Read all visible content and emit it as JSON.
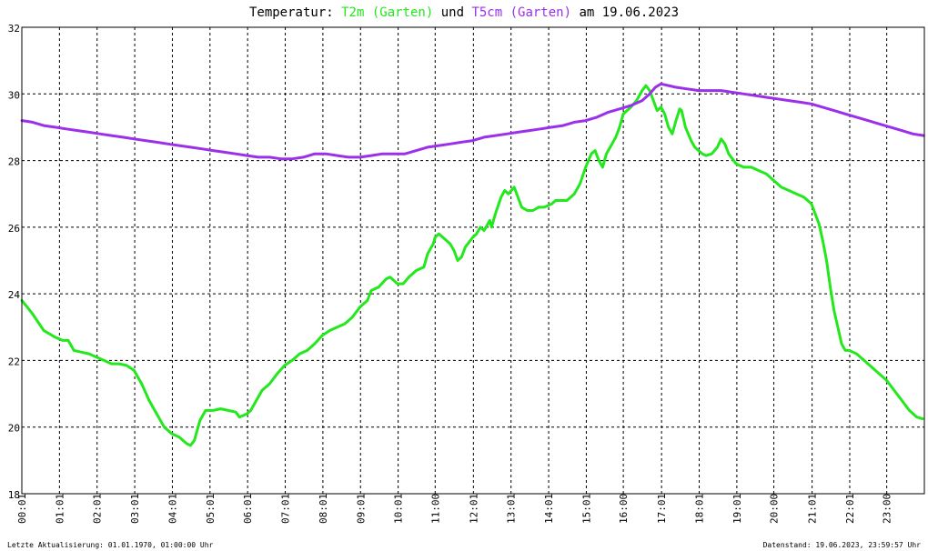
{
  "title": {
    "prefix": "Temperatur: ",
    "series1": "T2m (Garten)",
    "middle": " und ",
    "series2": "T5cm (Garten)",
    "suffix": " am 19.06.2023"
  },
  "footer": {
    "left": "Letzte Aktualisierung: 01.01.1970, 01:00:00 Uhr",
    "right": "Datenstand: 19.06.2023, 23:59:57 Uhr"
  },
  "colors": {
    "t2m": "#22e81c",
    "t5cm": "#9b30ea",
    "grid": "#000000",
    "background": "#ffffff"
  },
  "chart_data": {
    "type": "line",
    "title": "Temperatur: T2m (Garten) und T5cm (Garten) am 19.06.2023",
    "xlabel": "",
    "ylabel": "",
    "xlim": [
      0.0167,
      24
    ],
    "ylim": [
      18,
      32
    ],
    "y_ticks": [
      18,
      20,
      22,
      24,
      26,
      28,
      30,
      32
    ],
    "x_ticks": [
      {
        "x": 0.0167,
        "label": "00:01"
      },
      {
        "x": 1.0167,
        "label": "01:01"
      },
      {
        "x": 2.0167,
        "label": "02:01"
      },
      {
        "x": 3.0167,
        "label": "03:01"
      },
      {
        "x": 4.0167,
        "label": "04:01"
      },
      {
        "x": 5.0167,
        "label": "05:01"
      },
      {
        "x": 6.0167,
        "label": "06:01"
      },
      {
        "x": 7.0167,
        "label": "07:01"
      },
      {
        "x": 8.0167,
        "label": "08:01"
      },
      {
        "x": 9.0167,
        "label": "09:01"
      },
      {
        "x": 10.0167,
        "label": "10:01"
      },
      {
        "x": 11.0,
        "label": "11:00"
      },
      {
        "x": 12.0167,
        "label": "12:01"
      },
      {
        "x": 13.0167,
        "label": "13:01"
      },
      {
        "x": 14.0167,
        "label": "14:01"
      },
      {
        "x": 15.0167,
        "label": "15:01"
      },
      {
        "x": 16.0,
        "label": "16:00"
      },
      {
        "x": 17.0167,
        "label": "17:01"
      },
      {
        "x": 18.0167,
        "label": "18:01"
      },
      {
        "x": 19.0167,
        "label": "19:01"
      },
      {
        "x": 20.0,
        "label": "20:00"
      },
      {
        "x": 21.0167,
        "label": "21:01"
      },
      {
        "x": 22.0167,
        "label": "22:01"
      },
      {
        "x": 23.0,
        "label": "23:00"
      }
    ],
    "grid": true,
    "series": [
      {
        "name": "T2m (Garten)",
        "color": "#22e81c",
        "points": [
          [
            0.02,
            23.8
          ],
          [
            0.3,
            23.4
          ],
          [
            0.6,
            22.9
          ],
          [
            0.9,
            22.7
          ],
          [
            1.1,
            22.6
          ],
          [
            1.25,
            22.6
          ],
          [
            1.4,
            22.3
          ],
          [
            1.6,
            22.25
          ],
          [
            1.8,
            22.2
          ],
          [
            2.0,
            22.1
          ],
          [
            2.2,
            22.0
          ],
          [
            2.4,
            21.9
          ],
          [
            2.6,
            21.9
          ],
          [
            2.8,
            21.85
          ],
          [
            3.0,
            21.7
          ],
          [
            3.2,
            21.3
          ],
          [
            3.4,
            20.8
          ],
          [
            3.6,
            20.4
          ],
          [
            3.8,
            20.0
          ],
          [
            4.0,
            19.8
          ],
          [
            4.2,
            19.7
          ],
          [
            4.4,
            19.5
          ],
          [
            4.5,
            19.45
          ],
          [
            4.6,
            19.6
          ],
          [
            4.75,
            20.2
          ],
          [
            4.9,
            20.5
          ],
          [
            5.1,
            20.5
          ],
          [
            5.3,
            20.55
          ],
          [
            5.5,
            20.5
          ],
          [
            5.7,
            20.45
          ],
          [
            5.8,
            20.3
          ],
          [
            6.0,
            20.4
          ],
          [
            6.1,
            20.5
          ],
          [
            6.25,
            20.8
          ],
          [
            6.4,
            21.1
          ],
          [
            6.6,
            21.3
          ],
          [
            6.8,
            21.6
          ],
          [
            7.0,
            21.85
          ],
          [
            7.2,
            22.0
          ],
          [
            7.4,
            22.2
          ],
          [
            7.6,
            22.3
          ],
          [
            7.8,
            22.5
          ],
          [
            8.0,
            22.75
          ],
          [
            8.2,
            22.9
          ],
          [
            8.4,
            23.0
          ],
          [
            8.6,
            23.1
          ],
          [
            8.8,
            23.3
          ],
          [
            9.0,
            23.6
          ],
          [
            9.2,
            23.8
          ],
          [
            9.3,
            24.1
          ],
          [
            9.5,
            24.2
          ],
          [
            9.7,
            24.45
          ],
          [
            9.8,
            24.5
          ],
          [
            10.0,
            24.3
          ],
          [
            10.15,
            24.3
          ],
          [
            10.3,
            24.5
          ],
          [
            10.5,
            24.7
          ],
          [
            10.7,
            24.8
          ],
          [
            10.8,
            25.2
          ],
          [
            10.95,
            25.5
          ],
          [
            11.0,
            25.7
          ],
          [
            11.1,
            25.8
          ],
          [
            11.3,
            25.6
          ],
          [
            11.4,
            25.5
          ],
          [
            11.5,
            25.3
          ],
          [
            11.6,
            25.0
          ],
          [
            11.7,
            25.1
          ],
          [
            11.8,
            25.4
          ],
          [
            12.0,
            25.7
          ],
          [
            12.1,
            25.8
          ],
          [
            12.2,
            26.0
          ],
          [
            12.3,
            25.9
          ],
          [
            12.45,
            26.2
          ],
          [
            12.5,
            26.0
          ],
          [
            12.6,
            26.4
          ],
          [
            12.75,
            26.9
          ],
          [
            12.85,
            27.1
          ],
          [
            12.95,
            27.0
          ],
          [
            13.1,
            27.2
          ],
          [
            13.2,
            26.9
          ],
          [
            13.3,
            26.6
          ],
          [
            13.45,
            26.5
          ],
          [
            13.6,
            26.5
          ],
          [
            13.75,
            26.6
          ],
          [
            13.9,
            26.6
          ],
          [
            14.1,
            26.7
          ],
          [
            14.2,
            26.8
          ],
          [
            14.35,
            26.8
          ],
          [
            14.5,
            26.8
          ],
          [
            14.7,
            27.0
          ],
          [
            14.85,
            27.3
          ],
          [
            15.0,
            27.8
          ],
          [
            15.15,
            28.2
          ],
          [
            15.25,
            28.3
          ],
          [
            15.35,
            28.0
          ],
          [
            15.45,
            27.8
          ],
          [
            15.55,
            28.2
          ],
          [
            15.7,
            28.5
          ],
          [
            15.8,
            28.7
          ],
          [
            15.9,
            29.0
          ],
          [
            16.0,
            29.4
          ],
          [
            16.1,
            29.5
          ],
          [
            16.2,
            29.6
          ],
          [
            16.35,
            29.8
          ],
          [
            16.5,
            30.1
          ],
          [
            16.6,
            30.25
          ],
          [
            16.7,
            30.1
          ],
          [
            16.8,
            29.8
          ],
          [
            16.9,
            29.5
          ],
          [
            17.0,
            29.6
          ],
          [
            17.1,
            29.4
          ],
          [
            17.2,
            29.0
          ],
          [
            17.3,
            28.8
          ],
          [
            17.4,
            29.2
          ],
          [
            17.5,
            29.55
          ],
          [
            17.55,
            29.5
          ],
          [
            17.65,
            29.0
          ],
          [
            17.8,
            28.6
          ],
          [
            17.9,
            28.4
          ],
          [
            18.0,
            28.3
          ],
          [
            18.1,
            28.2
          ],
          [
            18.2,
            28.15
          ],
          [
            18.35,
            28.2
          ],
          [
            18.5,
            28.4
          ],
          [
            18.6,
            28.65
          ],
          [
            18.7,
            28.5
          ],
          [
            18.8,
            28.2
          ],
          [
            19.0,
            27.9
          ],
          [
            19.2,
            27.8
          ],
          [
            19.4,
            27.8
          ],
          [
            19.6,
            27.7
          ],
          [
            19.8,
            27.6
          ],
          [
            20.0,
            27.4
          ],
          [
            20.2,
            27.2
          ],
          [
            20.4,
            27.1
          ],
          [
            20.6,
            27.0
          ],
          [
            20.8,
            26.9
          ],
          [
            21.0,
            26.7
          ],
          [
            21.1,
            26.4
          ],
          [
            21.2,
            26.1
          ],
          [
            21.3,
            25.6
          ],
          [
            21.4,
            25.0
          ],
          [
            21.5,
            24.2
          ],
          [
            21.6,
            23.5
          ],
          [
            21.7,
            23.0
          ],
          [
            21.8,
            22.5
          ],
          [
            21.9,
            22.3
          ],
          [
            22.0,
            22.3
          ],
          [
            22.2,
            22.2
          ],
          [
            22.4,
            22.0
          ],
          [
            22.6,
            21.8
          ],
          [
            22.8,
            21.6
          ],
          [
            23.0,
            21.4
          ],
          [
            23.2,
            21.1
          ],
          [
            23.4,
            20.8
          ],
          [
            23.6,
            20.5
          ],
          [
            23.8,
            20.3
          ],
          [
            23.95,
            20.25
          ]
        ]
      },
      {
        "name": "T5cm (Garten)",
        "color": "#9b30ea",
        "points": [
          [
            0.02,
            29.2
          ],
          [
            0.3,
            29.15
          ],
          [
            0.6,
            29.05
          ],
          [
            0.9,
            29.0
          ],
          [
            1.2,
            28.95
          ],
          [
            1.5,
            28.9
          ],
          [
            1.8,
            28.85
          ],
          [
            2.1,
            28.8
          ],
          [
            2.4,
            28.75
          ],
          [
            2.7,
            28.7
          ],
          [
            3.0,
            28.65
          ],
          [
            3.3,
            28.6
          ],
          [
            3.6,
            28.55
          ],
          [
            3.9,
            28.5
          ],
          [
            4.2,
            28.45
          ],
          [
            4.5,
            28.4
          ],
          [
            4.8,
            28.35
          ],
          [
            5.1,
            28.3
          ],
          [
            5.4,
            28.25
          ],
          [
            5.7,
            28.2
          ],
          [
            6.0,
            28.15
          ],
          [
            6.3,
            28.1
          ],
          [
            6.6,
            28.1
          ],
          [
            6.9,
            28.05
          ],
          [
            7.2,
            28.05
          ],
          [
            7.5,
            28.1
          ],
          [
            7.8,
            28.2
          ],
          [
            8.1,
            28.2
          ],
          [
            8.4,
            28.15
          ],
          [
            8.7,
            28.1
          ],
          [
            9.0,
            28.1
          ],
          [
            9.3,
            28.15
          ],
          [
            9.6,
            28.2
          ],
          [
            9.9,
            28.2
          ],
          [
            10.2,
            28.2
          ],
          [
            10.5,
            28.3
          ],
          [
            10.8,
            28.4
          ],
          [
            11.1,
            28.45
          ],
          [
            11.4,
            28.5
          ],
          [
            11.7,
            28.55
          ],
          [
            12.0,
            28.6
          ],
          [
            12.3,
            28.7
          ],
          [
            12.6,
            28.75
          ],
          [
            12.9,
            28.8
          ],
          [
            13.2,
            28.85
          ],
          [
            13.5,
            28.9
          ],
          [
            13.8,
            28.95
          ],
          [
            14.1,
            29.0
          ],
          [
            14.4,
            29.05
          ],
          [
            14.7,
            29.15
          ],
          [
            15.0,
            29.2
          ],
          [
            15.3,
            29.3
          ],
          [
            15.6,
            29.45
          ],
          [
            15.9,
            29.55
          ],
          [
            16.2,
            29.65
          ],
          [
            16.5,
            29.8
          ],
          [
            16.7,
            30.0
          ],
          [
            16.85,
            30.2
          ],
          [
            17.0,
            30.3
          ],
          [
            17.2,
            30.25
          ],
          [
            17.4,
            30.2
          ],
          [
            17.7,
            30.15
          ],
          [
            18.0,
            30.1
          ],
          [
            18.3,
            30.1
          ],
          [
            18.6,
            30.1
          ],
          [
            18.9,
            30.05
          ],
          [
            19.2,
            30.0
          ],
          [
            19.5,
            29.95
          ],
          [
            19.8,
            29.9
          ],
          [
            20.1,
            29.85
          ],
          [
            20.4,
            29.8
          ],
          [
            20.7,
            29.75
          ],
          [
            21.0,
            29.7
          ],
          [
            21.3,
            29.6
          ],
          [
            21.6,
            29.5
          ],
          [
            21.9,
            29.4
          ],
          [
            22.2,
            29.3
          ],
          [
            22.5,
            29.2
          ],
          [
            22.8,
            29.1
          ],
          [
            23.1,
            29.0
          ],
          [
            23.4,
            28.9
          ],
          [
            23.7,
            28.8
          ],
          [
            23.98,
            28.75
          ]
        ]
      }
    ]
  }
}
